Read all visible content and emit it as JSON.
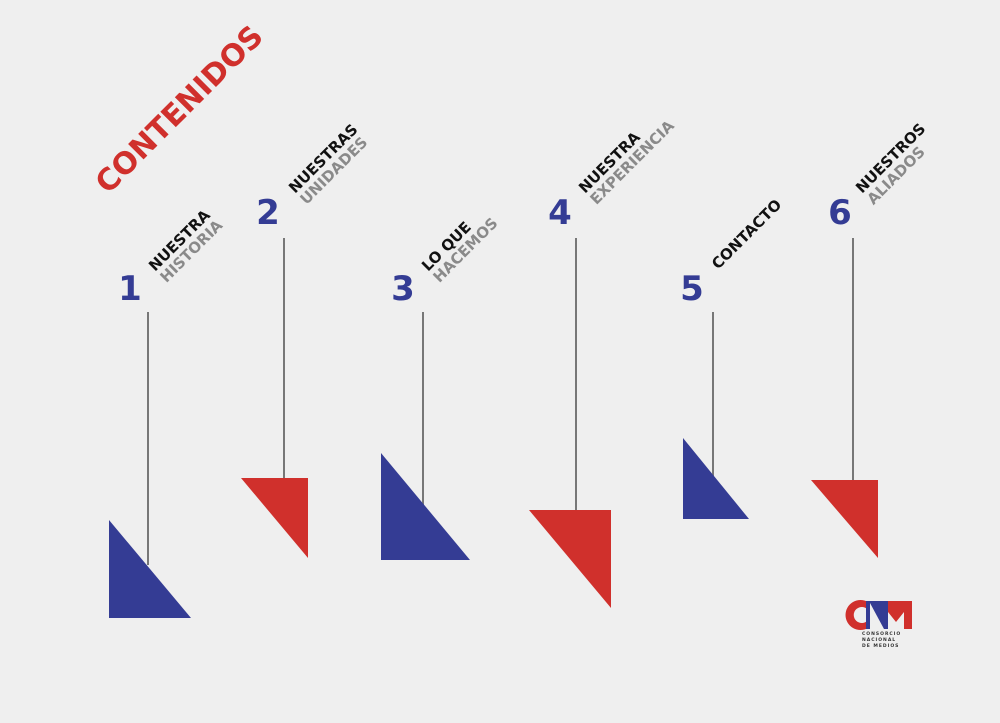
{
  "title": "CONTENIDOS",
  "items": [
    {
      "number": "1",
      "line1": "NUESTRA",
      "line2": "HISTORIA"
    },
    {
      "number": "2",
      "line1": "NUESTRAS",
      "line2": "UNIDADES"
    },
    {
      "number": "3",
      "line1": "LO QUE",
      "line2": "HACEMOS"
    },
    {
      "number": "4",
      "line1": "NUESTRA",
      "line2": "EXPERIENCIA"
    },
    {
      "number": "5",
      "line1": "CONTACTO"
    },
    {
      "number": "6",
      "line1": "NUESTROS",
      "line2": "ALIADOS"
    }
  ],
  "logo": {
    "tagline1": "CONSORCIO",
    "tagline2": "NACIONAL",
    "tagline3": "DE MEDIOS"
  }
}
